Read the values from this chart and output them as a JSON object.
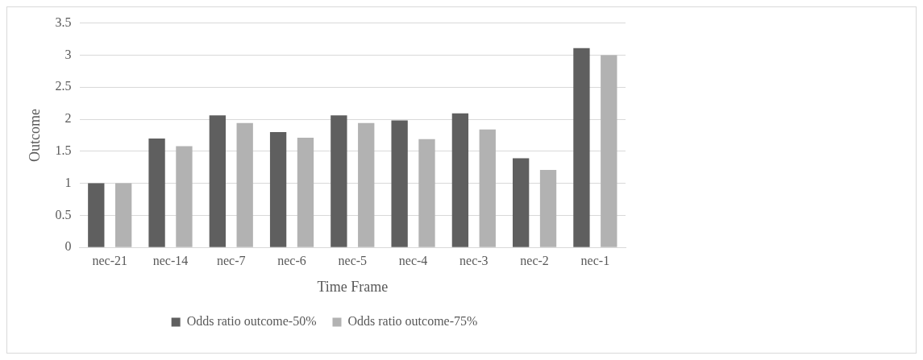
{
  "chart_data": {
    "type": "bar",
    "xlabel": "Time Frame",
    "ylabel": "Outcome",
    "categories": [
      "nec-21",
      "nec-14",
      "nec-7",
      "nec-6",
      "nec-5",
      "nec-4",
      "nec-3",
      "nec-2",
      "nec-1"
    ],
    "series": [
      {
        "name": "Odds ratio outcome-50%",
        "color": "#5f5f5f",
        "values": [
          1.0,
          1.7,
          2.06,
          1.8,
          2.06,
          1.98,
          2.09,
          1.39,
          3.11
        ]
      },
      {
        "name": "Odds ratio outcome-75%",
        "color": "#b2b2b2",
        "values": [
          1.0,
          1.58,
          1.94,
          1.71,
          1.94,
          1.69,
          1.84,
          1.21,
          3.0
        ]
      }
    ],
    "ylim": [
      0,
      3.5
    ],
    "yticks": [
      0,
      0.5,
      1,
      1.5,
      2,
      2.5,
      3,
      3.5
    ],
    "grid": "y",
    "legend": "bottom"
  }
}
